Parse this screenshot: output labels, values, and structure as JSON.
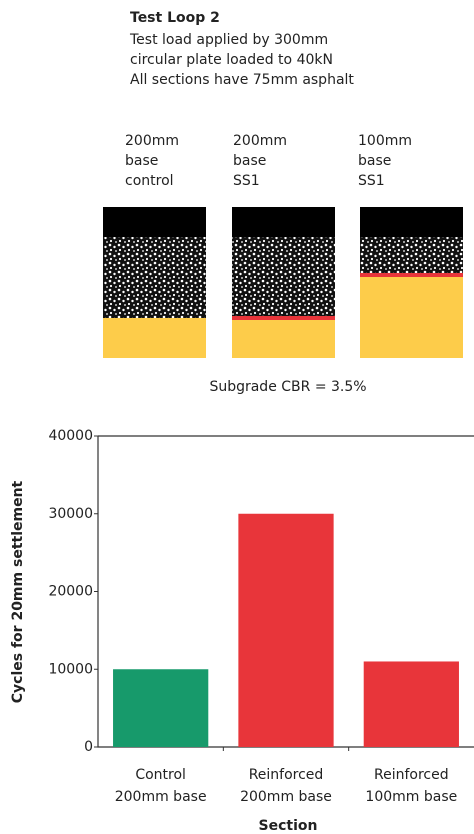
{
  "header": {
    "title": "Test Loop 2",
    "lines": [
      "Test load applied by 300mm",
      "circular plate loaded to 40kN",
      "All sections have 75mm asphalt"
    ]
  },
  "diagram": {
    "sections": [
      [
        "200mm",
        "base",
        "control"
      ],
      [
        "200mm",
        "base",
        "SS1"
      ],
      [
        "100mm",
        "base",
        "SS1"
      ]
    ],
    "note": "Subgrade CBR = 3.5%"
  },
  "chart_data": {
    "type": "bar",
    "categories": [
      "Control 200mm base",
      "Reinforced 200mm base",
      "Reinforced 100mm base"
    ],
    "values": [
      10000,
      30000,
      11000
    ],
    "colors": [
      "#179a6b",
      "#e8353a",
      "#e8353a"
    ],
    "ylabel": "Cycles for 20mm settlement",
    "xlabel": "Section",
    "ylim": [
      0,
      40000
    ],
    "yticks": [
      0,
      10000,
      20000,
      30000,
      40000
    ]
  }
}
